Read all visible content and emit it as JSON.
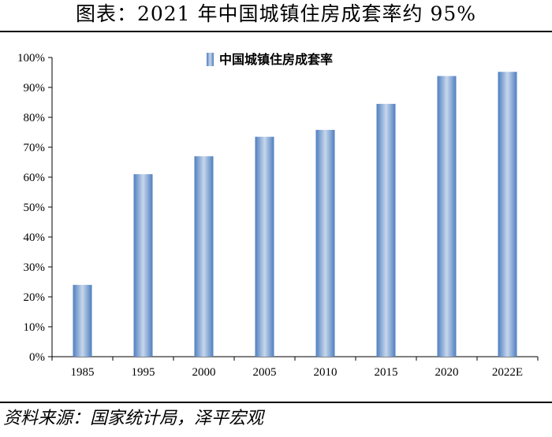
{
  "page": {
    "title": "图表：2021 年中国城镇住房成套率约 95%",
    "source": "资料来源：国家统计局，泽平宏观"
  },
  "chart_data": {
    "type": "bar",
    "title": "",
    "xlabel": "",
    "ylabel": "",
    "categories": [
      "1985",
      "1995",
      "2000",
      "2005",
      "2010",
      "2015",
      "2020",
      "2022E"
    ],
    "series": [
      {
        "name": "中国城镇住房成套率",
        "values": [
          24,
          61,
          67,
          73.5,
          75.8,
          84.5,
          93.8,
          95.2
        ]
      }
    ],
    "ylim": [
      0,
      100
    ],
    "yticks": [
      0,
      10,
      20,
      30,
      40,
      50,
      60,
      70,
      80,
      90,
      100
    ],
    "ytick_format": "percent",
    "grid": false,
    "legend": "top-center",
    "bar_color": "#4f7fc0",
    "bar_highlight": "#c7d7ec"
  }
}
